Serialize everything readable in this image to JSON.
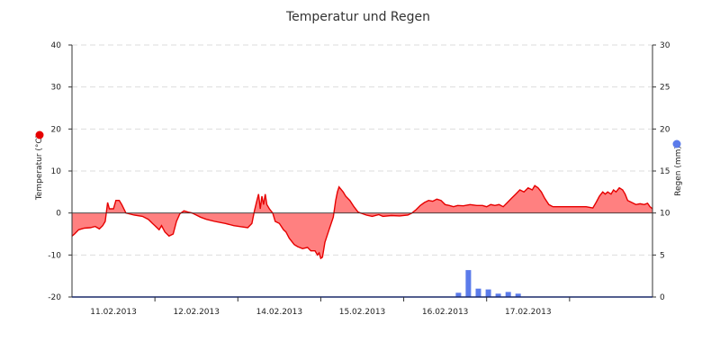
{
  "chart_data": {
    "type": "line",
    "title": "Temperatur und Regen",
    "ylabel_left": "Temperatur (°C)",
    "ylabel_right": "Regen (mm)",
    "ylim_left": [
      -20,
      40
    ],
    "ylim_right": [
      0,
      30
    ],
    "yticks_left": [
      40,
      30,
      20,
      10,
      0,
      -10,
      -20
    ],
    "yticks_right": [
      30,
      25,
      20,
      15,
      10,
      5,
      0
    ],
    "x_range_days": [
      "10.02.2013 12:00",
      "17.02.2013 23:00"
    ],
    "x_tick_labels": [
      {
        "day": 0.5,
        "label": "11.02.2013"
      },
      {
        "day": 1.5,
        "label": "12.02.2013"
      },
      {
        "day": 2.5,
        "label": "14.02.2013"
      },
      {
        "day": 3.5,
        "label": "15.02.2013"
      },
      {
        "day": 4.5,
        "label": "16.02.2013"
      },
      {
        "day": 5.5,
        "label": "17.02.2013"
      }
    ],
    "grid": "horizontal dashed",
    "colors": {
      "temperature_line": "#e60000",
      "temperature_fill": "#ff8080",
      "rain_bar": "#5b7bea",
      "legend_temp_dot": "#e60000",
      "legend_rain_dot": "#5b7bea"
    },
    "series": [
      {
        "name": "Temperatur (°C)",
        "type": "area",
        "axis": "left",
        "points": [
          [
            0.0,
            -5.5
          ],
          [
            0.03,
            -5.0
          ],
          [
            0.08,
            -4.0
          ],
          [
            0.15,
            -3.6
          ],
          [
            0.22,
            -3.5
          ],
          [
            0.28,
            -3.2
          ],
          [
            0.33,
            -3.8
          ],
          [
            0.37,
            -3.0
          ],
          [
            0.4,
            -2.0
          ],
          [
            0.43,
            2.5
          ],
          [
            0.45,
            1.0
          ],
          [
            0.5,
            1.0
          ],
          [
            0.53,
            3.0
          ],
          [
            0.57,
            3.0
          ],
          [
            0.6,
            2.0
          ],
          [
            0.65,
            0.0
          ],
          [
            0.75,
            -0.5
          ],
          [
            0.85,
            -0.8
          ],
          [
            0.92,
            -1.5
          ],
          [
            0.97,
            -2.5
          ],
          [
            1.0,
            -3.0
          ],
          [
            1.05,
            -4.0
          ],
          [
            1.08,
            -3.0
          ],
          [
            1.12,
            -4.5
          ],
          [
            1.17,
            -5.5
          ],
          [
            1.22,
            -5.0
          ],
          [
            1.26,
            -2.0
          ],
          [
            1.3,
            -0.2
          ],
          [
            1.35,
            0.5
          ],
          [
            1.4,
            0.2
          ],
          [
            1.45,
            0.0
          ],
          [
            1.5,
            -0.5
          ],
          [
            1.55,
            -1.0
          ],
          [
            1.62,
            -1.5
          ],
          [
            1.72,
            -2.0
          ],
          [
            1.85,
            -2.5
          ],
          [
            1.95,
            -3.0
          ],
          [
            2.05,
            -3.3
          ],
          [
            2.12,
            -3.5
          ],
          [
            2.17,
            -2.5
          ],
          [
            2.2,
            0.5
          ],
          [
            2.23,
            3.0
          ],
          [
            2.25,
            4.5
          ],
          [
            2.27,
            1.0
          ],
          [
            2.29,
            4.0
          ],
          [
            2.31,
            2.0
          ],
          [
            2.33,
            4.5
          ],
          [
            2.35,
            2.0
          ],
          [
            2.38,
            1.0
          ],
          [
            2.42,
            0.0
          ],
          [
            2.45,
            -2.0
          ],
          [
            2.5,
            -2.5
          ],
          [
            2.55,
            -4.0
          ],
          [
            2.58,
            -4.5
          ],
          [
            2.62,
            -6.0
          ],
          [
            2.68,
            -7.5
          ],
          [
            2.72,
            -8.0
          ],
          [
            2.78,
            -8.5
          ],
          [
            2.84,
            -8.2
          ],
          [
            2.88,
            -9.0
          ],
          [
            2.93,
            -9.0
          ],
          [
            2.96,
            -10.0
          ],
          [
            2.98,
            -9.5
          ],
          [
            3.0,
            -10.8
          ],
          [
            3.02,
            -10.5
          ],
          [
            3.05,
            -7.0
          ],
          [
            3.1,
            -4.0
          ],
          [
            3.15,
            -1.0
          ],
          [
            3.18,
            3.0
          ],
          [
            3.2,
            5.0
          ],
          [
            3.22,
            6.2
          ],
          [
            3.27,
            5.0
          ],
          [
            3.3,
            4.0
          ],
          [
            3.35,
            3.0
          ],
          [
            3.4,
            1.5
          ],
          [
            3.45,
            0.2
          ],
          [
            3.55,
            -0.5
          ],
          [
            3.62,
            -0.8
          ],
          [
            3.7,
            -0.4
          ],
          [
            3.75,
            -0.8
          ],
          [
            3.85,
            -0.6
          ],
          [
            3.95,
            -0.7
          ],
          [
            4.05,
            -0.5
          ],
          [
            4.1,
            0.0
          ],
          [
            4.15,
            0.8
          ],
          [
            4.2,
            1.8
          ],
          [
            4.25,
            2.5
          ],
          [
            4.3,
            3.0
          ],
          [
            4.35,
            2.8
          ],
          [
            4.4,
            3.3
          ],
          [
            4.45,
            3.0
          ],
          [
            4.5,
            2.0
          ],
          [
            4.55,
            1.8
          ],
          [
            4.6,
            1.5
          ],
          [
            4.65,
            1.8
          ],
          [
            4.72,
            1.7
          ],
          [
            4.8,
            2.0
          ],
          [
            4.88,
            1.8
          ],
          [
            4.95,
            1.8
          ],
          [
            5.0,
            1.5
          ],
          [
            5.05,
            2.0
          ],
          [
            5.1,
            1.8
          ],
          [
            5.15,
            2.0
          ],
          [
            5.2,
            1.5
          ],
          [
            5.25,
            2.5
          ],
          [
            5.3,
            3.5
          ],
          [
            5.35,
            4.5
          ],
          [
            5.4,
            5.5
          ],
          [
            5.45,
            5.0
          ],
          [
            5.5,
            6.0
          ],
          [
            5.55,
            5.5
          ],
          [
            5.58,
            6.5
          ],
          [
            5.62,
            6.0
          ],
          [
            5.66,
            5.0
          ],
          [
            5.7,
            3.5
          ],
          [
            5.75,
            2.0
          ],
          [
            5.8,
            1.5
          ],
          [
            5.9,
            1.5
          ],
          [
            6.0,
            1.5
          ],
          [
            6.1,
            1.5
          ],
          [
            6.2,
            1.5
          ],
          [
            6.28,
            1.2
          ],
          [
            6.32,
            2.5
          ],
          [
            6.36,
            4.0
          ],
          [
            6.4,
            5.0
          ],
          [
            6.43,
            4.5
          ],
          [
            6.46,
            5.0
          ],
          [
            6.5,
            4.5
          ],
          [
            6.53,
            5.5
          ],
          [
            6.56,
            5.0
          ],
          [
            6.6,
            6.0
          ],
          [
            6.64,
            5.5
          ],
          [
            6.67,
            4.5
          ],
          [
            6.7,
            3.0
          ],
          [
            6.75,
            2.5
          ],
          [
            6.8,
            2.0
          ],
          [
            6.85,
            2.2
          ],
          [
            6.9,
            2.0
          ],
          [
            6.94,
            2.3
          ],
          [
            6.97,
            1.5
          ],
          [
            7.0,
            1.0
          ]
        ]
      },
      {
        "name": "Regen (mm)",
        "type": "bar",
        "axis": "right",
        "points": [
          [
            4.66,
            0.5
          ],
          [
            4.78,
            3.2
          ],
          [
            4.9,
            1.0
          ],
          [
            5.02,
            0.9
          ],
          [
            5.14,
            0.4
          ],
          [
            5.26,
            0.6
          ],
          [
            5.38,
            0.4
          ]
        ]
      }
    ]
  }
}
